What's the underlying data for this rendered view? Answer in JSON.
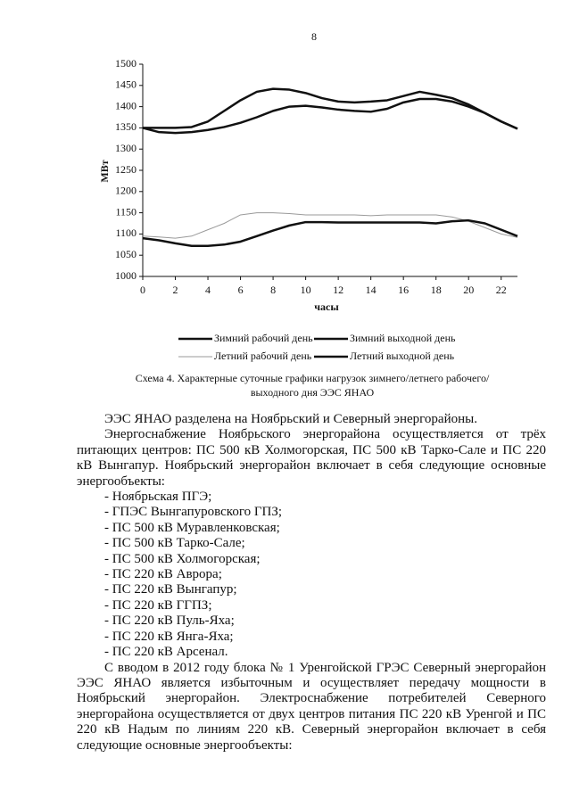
{
  "page_number": "8",
  "chart_data": {
    "type": "line",
    "xlabel": "часы",
    "ylabel": "МВт",
    "x": [
      0,
      1,
      2,
      3,
      4,
      5,
      6,
      7,
      8,
      9,
      10,
      11,
      12,
      13,
      14,
      15,
      16,
      17,
      18,
      19,
      20,
      21,
      22,
      23
    ],
    "xlim": [
      0,
      23
    ],
    "xticks": [
      0,
      2,
      4,
      6,
      8,
      10,
      12,
      14,
      16,
      18,
      20,
      22
    ],
    "ylim": [
      1000,
      1500
    ],
    "yticks": [
      1000,
      1050,
      1100,
      1150,
      1200,
      1250,
      1300,
      1350,
      1400,
      1450,
      1500
    ],
    "series": [
      {
        "name": "Зимний рабочий день",
        "color": "#111111",
        "line_width": 2.5,
        "values": [
          1350,
          1350,
          1350,
          1352,
          1365,
          1390,
          1415,
          1435,
          1442,
          1440,
          1432,
          1420,
          1412,
          1410,
          1412,
          1415,
          1425,
          1435,
          1428,
          1420,
          1405,
          1385,
          1365,
          1348
        ]
      },
      {
        "name": "Зимний выходной день",
        "color": "#111111",
        "line_width": 2.5,
        "values": [
          1350,
          1340,
          1338,
          1340,
          1345,
          1352,
          1362,
          1375,
          1390,
          1400,
          1402,
          1398,
          1393,
          1390,
          1388,
          1395,
          1410,
          1418,
          1418,
          1412,
          1400,
          1385,
          1365,
          1348
        ]
      },
      {
        "name": "Летний рабочий день",
        "color": "#9a9a9a",
        "line_width": 1,
        "values": [
          1095,
          1093,
          1090,
          1095,
          1110,
          1125,
          1145,
          1150,
          1150,
          1148,
          1145,
          1145,
          1145,
          1145,
          1143,
          1145,
          1145,
          1145,
          1145,
          1140,
          1130,
          1115,
          1100,
          1092
        ]
      },
      {
        "name": "Летний выходной день",
        "color": "#111111",
        "line_width": 2.5,
        "values": [
          1090,
          1085,
          1078,
          1072,
          1072,
          1075,
          1082,
          1095,
          1108,
          1120,
          1128,
          1128,
          1127,
          1127,
          1127,
          1127,
          1127,
          1127,
          1125,
          1130,
          1132,
          1125,
          1110,
          1095
        ]
      }
    ],
    "caption": [
      "Схема 4. Характерные суточные графики нагрузок зимнего/летнего рабочего/",
      "выходного дня ЭЭС ЯНАО"
    ]
  },
  "body": {
    "intro": [
      "ЭЭС ЯНАО разделена на Ноябрьский и Северный энергорайоны.",
      "Энергоснабжение Ноябрьского энергорайона осуществляется от трёх питающих центров: ПС 500 кВ Холмогорская, ПС 500 кВ Тарко-Сале и ПС 220 кВ Вынгапур. Ноябрьский энергорайон включает в себя следующие основные энергообъекты:"
    ],
    "list": [
      "- Ноябрьская ПГЭ;",
      "- ГПЭС Вынгапуровского ГПЗ;",
      "- ПС 500 кВ Муравленковская;",
      "- ПС 500 кВ Тарко-Сале;",
      "- ПС 500 кВ Холмогорская;",
      "- ПС 220 кВ Аврора;",
      "- ПС 220 кВ Вынгапур;",
      "- ПС 220 кВ ГГПЗ;",
      "- ПС 220 кВ Пуль-Яха;",
      "- ПС 220 кВ Янга-Яха;",
      "- ПС 220 кВ Арсенал."
    ],
    "after": [
      "С вводом в 2012 году блока № 1 Уренгойской ГРЭС Северный энергорайон ЭЭС ЯНАО является избыточным и осуществляет передачу мощности в Ноябрьский энергорайон. Электроснабжение потребителей Северного энергорайона осуществляется от двух центров питания ПС 220 кВ Уренгой и ПС 220 кВ Надым по линиям 220 кВ. Северный энергорайон включает в себя следующие основные энергообъекты:"
    ]
  }
}
